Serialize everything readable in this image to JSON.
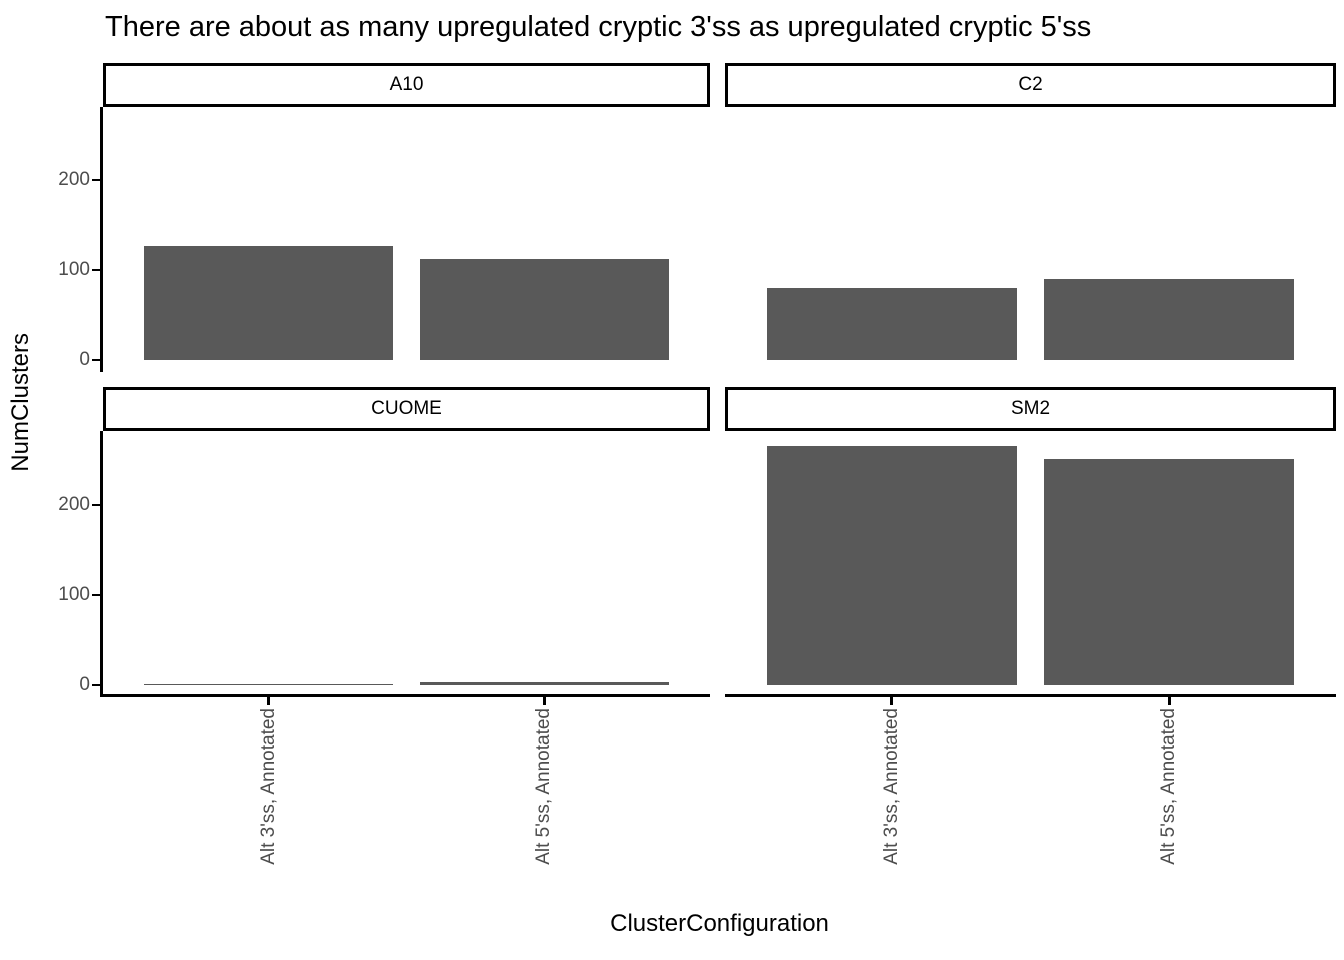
{
  "title": "There are about as many upregulated cryptic 3'ss as upregulated cryptic 5'ss",
  "chart_data": {
    "type": "bar",
    "faceted": true,
    "facet_layout": "2x2",
    "facets": [
      {
        "label": "A10",
        "values": [
          127,
          112
        ]
      },
      {
        "label": "C2",
        "values": [
          80,
          90
        ]
      },
      {
        "label": "CUOME",
        "values": [
          1,
          3
        ]
      },
      {
        "label": "SM2",
        "values": [
          266,
          251
        ]
      }
    ],
    "categories": [
      "Alt 3'ss, Annotated",
      "Alt 5'ss, Annotated"
    ],
    "title": "There are about as many upregulated cryptic 3'ss as upregulated cryptic 5'ss",
    "xlabel": "ClusterConfiguration",
    "ylabel": "NumClusters",
    "y_ticks": [
      0,
      100,
      200
    ],
    "ylim": [
      -13,
      278
    ],
    "grid": false,
    "legend": "none",
    "bar_color": "#595959",
    "axis_text_color": "#4d4d4d",
    "axis_line_color": "#000000",
    "strip_background": "#ffffff",
    "strip_border_color": "#000000"
  }
}
